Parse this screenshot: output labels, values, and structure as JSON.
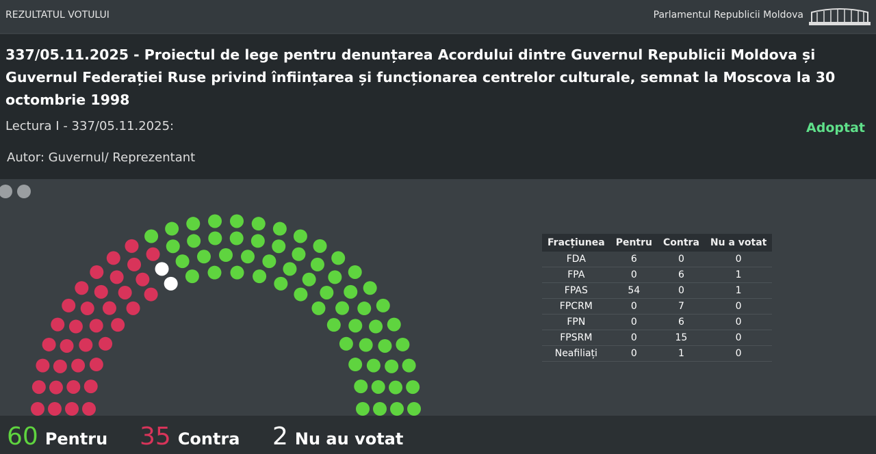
{
  "header": {
    "left": "REZULTATUL VOTULUI",
    "right": "Parlamentul Republicii Moldova"
  },
  "bill": {
    "title": "337/05.11.2025 - Proiectul de lege pentru denunțarea Acordului dintre Guvernul Republicii Moldova și Guvernul Federației Ruse privind înființarea și funcționarea centrelor culturale, semnat la Moscova la 30 octombrie 1998",
    "reading": "Lectura I - 337/05.11.2025:",
    "status": "Adoptat",
    "author": "Autor: Guvernul/ Reprezentant"
  },
  "table": {
    "columns": [
      "Fracțiunea",
      "Pentru",
      "Contra",
      "Nu a votat"
    ],
    "rows": [
      [
        "FDA",
        6,
        0,
        0
      ],
      [
        "FPA",
        0,
        6,
        1
      ],
      [
        "FPAS",
        54,
        0,
        1
      ],
      [
        "FPCRM",
        0,
        7,
        0
      ],
      [
        "FPN",
        0,
        6,
        0
      ],
      [
        "FPSRM",
        0,
        15,
        0
      ],
      [
        "Neafiliați",
        0,
        1,
        0
      ]
    ]
  },
  "summary": [
    {
      "count": 60,
      "label": "Pentru",
      "color": "#5fd43f"
    },
    {
      "count": 35,
      "label": "Contra",
      "color": "#d8345a"
    },
    {
      "count": 2,
      "label": "Nu au votat",
      "color": "#ffffff"
    }
  ]
}
